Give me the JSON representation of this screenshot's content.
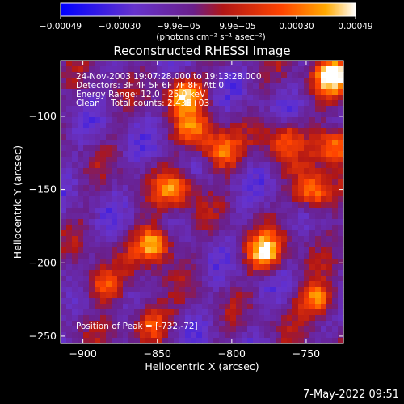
{
  "chart_data": {
    "type": "heatmap",
    "title": "Reconstructed RHESSI Image",
    "xlabel": "Heliocentric X (arcsec)",
    "ylabel": "Heliocentric Y (arcsec)",
    "xlim": [
      -915,
      -725
    ],
    "ylim": [
      -255,
      -62
    ],
    "x_ticks": [
      -900,
      -850,
      -800,
      -750
    ],
    "y_ticks": [
      -100,
      -150,
      -200,
      -250
    ],
    "x_tick_labels": [
      "−900",
      "−850",
      "−800",
      "−750"
    ],
    "y_tick_labels": [
      "−100",
      "−150",
      "−200",
      "−250"
    ],
    "colorbar": {
      "range": [
        -0.00049,
        0.00049
      ],
      "tick_labels": [
        "−0.00049",
        "−0.00030",
        "−9.9e−05",
        "9.9e−05",
        "0.00030",
        "0.00049"
      ],
      "units": "(photons cm⁻² s⁻¹ asec⁻²)",
      "colors": [
        "#0000ff",
        "#6633cc",
        "#6a1f8a",
        "#b01616",
        "#ff4400",
        "#ffaa00",
        "#ffffff"
      ]
    },
    "annotations": [
      "24-Nov-2003 19:07:28.000 to 19:13:28.000",
      "Detectors: 3F 4F 5F 6F 7F 8F, Att 0",
      "Energy Range: 12.0 - 25.0 keV",
      "Clean    Total counts: 2.43E+03",
      "Position of Peak = [-732,-72]"
    ],
    "grid": false,
    "peak": {
      "x": -732,
      "y": -72
    },
    "bright_sources": [
      {
        "x": -852,
        "y": -187,
        "v": 0.00049
      },
      {
        "x": -732,
        "y": -72,
        "v": 0.00049
      },
      {
        "x": -778,
        "y": -193,
        "v": 0.00045
      },
      {
        "x": -838,
        "y": -150,
        "v": 0.0003
      },
      {
        "x": -832,
        "y": -85,
        "v": 0.0004
      },
      {
        "x": -808,
        "y": -125,
        "v": 0.0003
      },
      {
        "x": -745,
        "y": -152,
        "v": 0.0004
      },
      {
        "x": -742,
        "y": -225,
        "v": 0.0004
      },
      {
        "x": -888,
        "y": -215,
        "v": 0.00028
      },
      {
        "x": -855,
        "y": -240,
        "v": 0.0003
      },
      {
        "x": -825,
        "y": -110,
        "v": 0.00025
      },
      {
        "x": -765,
        "y": -115,
        "v": 0.00025
      },
      {
        "x": -730,
        "y": -120,
        "v": 0.00045
      }
    ]
  },
  "footer": {
    "timestamp": "7-May-2022 09:51"
  }
}
